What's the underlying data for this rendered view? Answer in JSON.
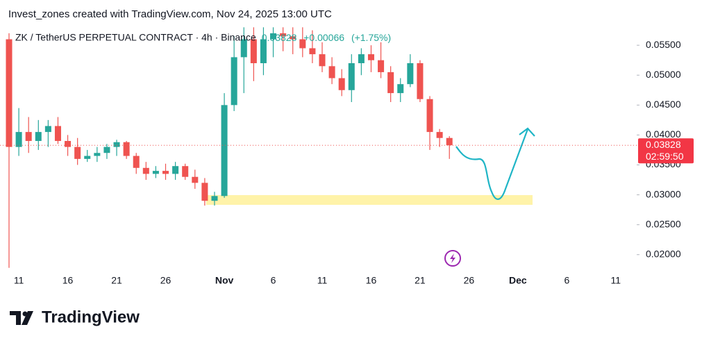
{
  "header": "Invest_zones created with TradingView.com, Nov 24, 2025 13:00 UTC",
  "footer": "TradingView",
  "chart_data": {
    "type": "candlestick",
    "title": "ZK / TetherUS PERPETUAL CONTRACT · 4h · Binance",
    "legend": {
      "close": "0.03828",
      "change": "+0.00066",
      "change_pct": "(+1.75%)"
    },
    "last": {
      "value": 0.03828,
      "label": "0.03828",
      "countdown": "02:59:50"
    },
    "up_color": "#26a69a",
    "down_color": "#ef5350",
    "x": [
      "2025-10-10",
      "2025-10-11",
      "2025-10-12",
      "2025-10-13",
      "2025-10-14",
      "2025-10-15",
      "2025-10-16",
      "2025-10-17",
      "2025-10-18",
      "2025-10-19",
      "2025-10-20",
      "2025-10-21",
      "2025-10-22",
      "2025-10-23",
      "2025-10-24",
      "2025-10-25",
      "2025-10-26",
      "2025-10-27",
      "2025-10-28",
      "2025-10-29",
      "2025-10-30",
      "2025-10-31",
      "2025-11-01",
      "2025-11-02",
      "2025-11-03",
      "2025-11-04",
      "2025-11-05",
      "2025-11-06",
      "2025-11-07",
      "2025-11-08",
      "2025-11-09",
      "2025-11-10",
      "2025-11-11",
      "2025-11-12",
      "2025-11-13",
      "2025-11-14",
      "2025-11-15",
      "2025-11-16",
      "2025-11-17",
      "2025-11-18",
      "2025-11-19",
      "2025-11-20",
      "2025-11-21",
      "2025-11-22",
      "2025-11-23",
      "2025-11-24"
    ],
    "open": [
      0.056,
      0.038,
      0.0405,
      0.039,
      0.0405,
      0.0415,
      0.039,
      0.038,
      0.036,
      0.0365,
      0.037,
      0.038,
      0.0388,
      0.0365,
      0.0345,
      0.0335,
      0.034,
      0.0335,
      0.0348,
      0.033,
      0.032,
      0.029,
      0.0298,
      0.045,
      0.053,
      0.056,
      0.052,
      0.056,
      0.057,
      0.0565,
      0.056,
      0.0545,
      0.0535,
      0.0515,
      0.0495,
      0.0475,
      0.052,
      0.0535,
      0.0525,
      0.0505,
      0.047,
      0.0485,
      0.052,
      0.046,
      0.0405,
      0.0395
    ],
    "high": [
      0.057,
      0.0445,
      0.043,
      0.0425,
      0.0425,
      0.043,
      0.04,
      0.0395,
      0.0375,
      0.038,
      0.0385,
      0.0392,
      0.039,
      0.037,
      0.0355,
      0.0348,
      0.0352,
      0.0355,
      0.0352,
      0.0342,
      0.0328,
      0.0305,
      0.047,
      0.0565,
      0.058,
      0.058,
      0.058,
      0.058,
      0.058,
      0.058,
      0.058,
      0.0575,
      0.0555,
      0.053,
      0.051,
      0.0535,
      0.0545,
      0.055,
      0.0555,
      0.0515,
      0.0495,
      0.0535,
      0.0525,
      0.0465,
      0.041,
      0.0398
    ],
    "low": [
      0.0178,
      0.0365,
      0.037,
      0.0375,
      0.038,
      0.0385,
      0.0365,
      0.035,
      0.0355,
      0.0355,
      0.036,
      0.0365,
      0.036,
      0.0335,
      0.0325,
      0.0328,
      0.0325,
      0.0325,
      0.0325,
      0.031,
      0.0282,
      0.0282,
      0.0295,
      0.044,
      0.047,
      0.049,
      0.05,
      0.053,
      0.054,
      0.0535,
      0.053,
      0.052,
      0.0505,
      0.0485,
      0.0465,
      0.0455,
      0.05,
      0.0505,
      0.0495,
      0.0455,
      0.0455,
      0.048,
      0.0455,
      0.0375,
      0.038,
      0.036
    ],
    "close": [
      0.038,
      0.0405,
      0.039,
      0.0405,
      0.0415,
      0.039,
      0.038,
      0.036,
      0.0365,
      0.037,
      0.038,
      0.0388,
      0.0365,
      0.0345,
      0.0335,
      0.034,
      0.0335,
      0.0348,
      0.033,
      0.032,
      0.029,
      0.0298,
      0.045,
      0.053,
      0.056,
      0.052,
      0.056,
      0.057,
      0.0565,
      0.056,
      0.0545,
      0.0535,
      0.0515,
      0.0495,
      0.0475,
      0.052,
      0.0535,
      0.0525,
      0.0505,
      0.047,
      0.0485,
      0.052,
      0.046,
      0.0405,
      0.0395,
      0.03828
    ],
    "xlim": [
      "2025-10-10",
      "2025-12-13"
    ],
    "xticks": [
      {
        "value": "2025-10-11",
        "label": "11"
      },
      {
        "value": "2025-10-16",
        "label": "16"
      },
      {
        "value": "2025-10-21",
        "label": "21"
      },
      {
        "value": "2025-10-26",
        "label": "26"
      },
      {
        "value": "2025-11-01",
        "label": "Nov"
      },
      {
        "value": "2025-11-06",
        "label": "6"
      },
      {
        "value": "2025-11-11",
        "label": "11"
      },
      {
        "value": "2025-11-16",
        "label": "16"
      },
      {
        "value": "2025-11-21",
        "label": "21"
      },
      {
        "value": "2025-11-26",
        "label": "26"
      },
      {
        "value": "2025-12-01",
        "label": "Dec"
      },
      {
        "value": "2025-12-06",
        "label": "6"
      },
      {
        "value": "2025-12-11",
        "label": "11"
      }
    ],
    "ylim": [
      0.0173,
      0.0585
    ],
    "yticks": [
      {
        "value": 0.055,
        "label": "0.05500"
      },
      {
        "value": 0.05,
        "label": "0.05000"
      },
      {
        "value": 0.045,
        "label": "0.04500"
      },
      {
        "value": 0.04,
        "label": "0.04000"
      },
      {
        "value": 0.035,
        "label": "0.03500"
      },
      {
        "value": 0.03,
        "label": "0.03000"
      },
      {
        "value": 0.025,
        "label": "0.02500"
      },
      {
        "value": 0.02,
        "label": "0.02000"
      }
    ]
  }
}
